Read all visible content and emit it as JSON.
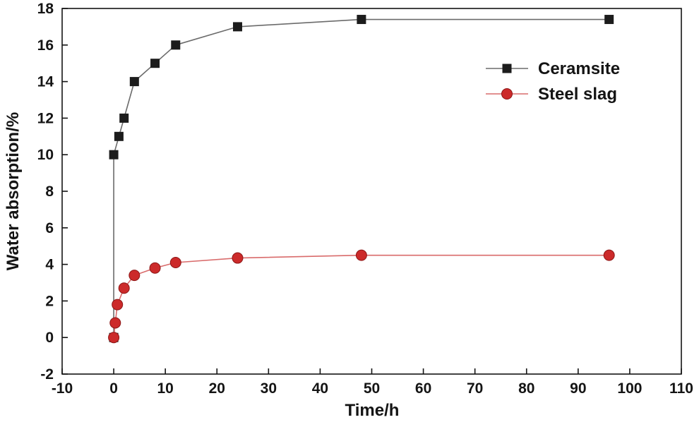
{
  "chart_data": {
    "type": "line",
    "title": "",
    "xlabel": "Time/h",
    "ylabel": "Water absorption/%",
    "xlim": [
      -10,
      110
    ],
    "ylim": [
      -2,
      18
    ],
    "xticks": [
      -10,
      0,
      10,
      20,
      30,
      40,
      50,
      60,
      70,
      80,
      90,
      100,
      110
    ],
    "yticks": [
      -2,
      0,
      2,
      4,
      6,
      8,
      10,
      12,
      14,
      16,
      18
    ],
    "grid": false,
    "legend_position": "upper-right-inside",
    "colors": {
      "ceramsite_marker": "#1c1c1c",
      "ceramsite_line": "#6b6b6b",
      "steel_slag_marker": "#cc2a2a",
      "steel_slag_line": "#d96b6b",
      "axis": "#141414"
    },
    "series": [
      {
        "name": "Ceramsite",
        "marker": "square",
        "color": "#1c1c1c",
        "line_color": "#6b6b6b",
        "x": [
          0,
          0,
          1,
          2,
          4,
          8,
          12,
          24,
          48,
          96
        ],
        "y": [
          0,
          10,
          11,
          12,
          14,
          15,
          16,
          17,
          17.4,
          17.4
        ]
      },
      {
        "name": "Steel slag",
        "marker": "circle",
        "color": "#cc2a2a",
        "line_color": "#d96b6b",
        "x": [
          0,
          0.3,
          0.7,
          2,
          4,
          8,
          12,
          24,
          48,
          96
        ],
        "y": [
          0,
          0.8,
          1.8,
          2.7,
          3.4,
          3.8,
          4.1,
          4.35,
          4.5,
          4.5
        ]
      }
    ]
  }
}
